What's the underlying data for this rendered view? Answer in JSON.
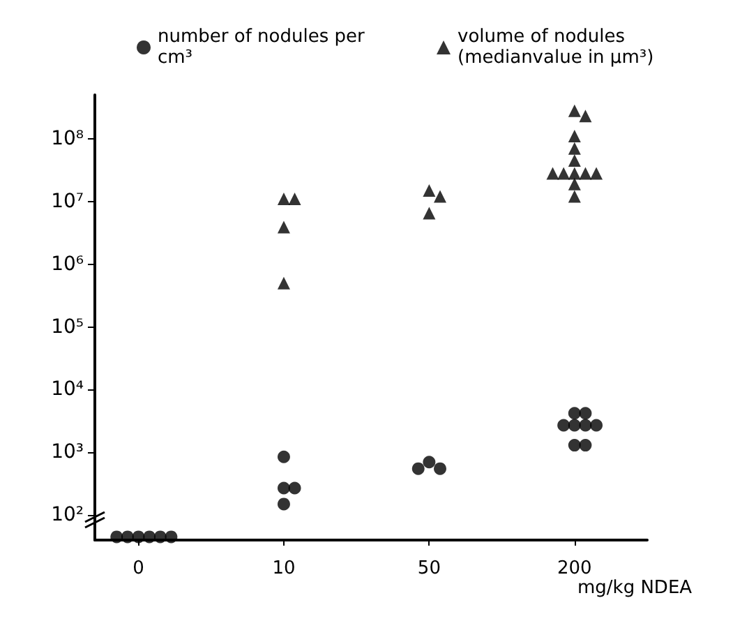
{
  "chart_data": {
    "type": "scatter",
    "categories": [
      "0",
      "10",
      "50",
      "200"
    ],
    "xlabel": "mg/kg NDEA",
    "series": [
      {
        "name": "number of nodules per cm³",
        "color": "#000000",
        "marker": "circle",
        "x": [
          "0",
          "0",
          "0",
          "0",
          "0",
          "0",
          "10",
          "10",
          "10",
          "10",
          "50",
          "50",
          "50",
          "200",
          "200",
          "200",
          "200",
          "200",
          "200",
          "200",
          "200"
        ],
        "values": [
          45,
          45,
          45,
          45,
          45,
          45,
          850,
          270,
          270,
          150,
          700,
          550,
          550,
          4200,
          4200,
          2700,
          2700,
          2700,
          2700,
          1300,
          1300
        ]
      },
      {
        "name": "volume of nodules (medianvalue in µm³)",
        "color": "#000000",
        "marker": "triangle",
        "x": [
          "10",
          "10",
          "10",
          "10",
          "50",
          "50",
          "50",
          "200",
          "200",
          "200",
          "200",
          "200",
          "200",
          "200",
          "200",
          "200",
          "200",
          "200",
          "200"
        ],
        "values": [
          11000000,
          11000000,
          3900000,
          500000,
          15000000,
          12000000,
          6500000,
          280000000,
          230000000,
          110000000,
          70000000,
          45000000,
          28000000,
          28000000,
          28000000,
          28000000,
          28000000,
          19000000,
          12000000
        ]
      }
    ],
    "log": "y",
    "ylim": [
      40,
      500000000
    ],
    "yticks": [
      {
        "value": 100,
        "label": "10²"
      },
      {
        "value": 1000,
        "label": "10³"
      },
      {
        "value": 10000,
        "label": "10⁴"
      },
      {
        "value": 100000,
        "label": "10⁵"
      },
      {
        "value": 1000000,
        "label": "10⁶"
      },
      {
        "value": 10000000,
        "label": "10⁷"
      },
      {
        "value": 100000000,
        "label": "10⁸"
      }
    ],
    "grid": false,
    "legend": "top"
  }
}
